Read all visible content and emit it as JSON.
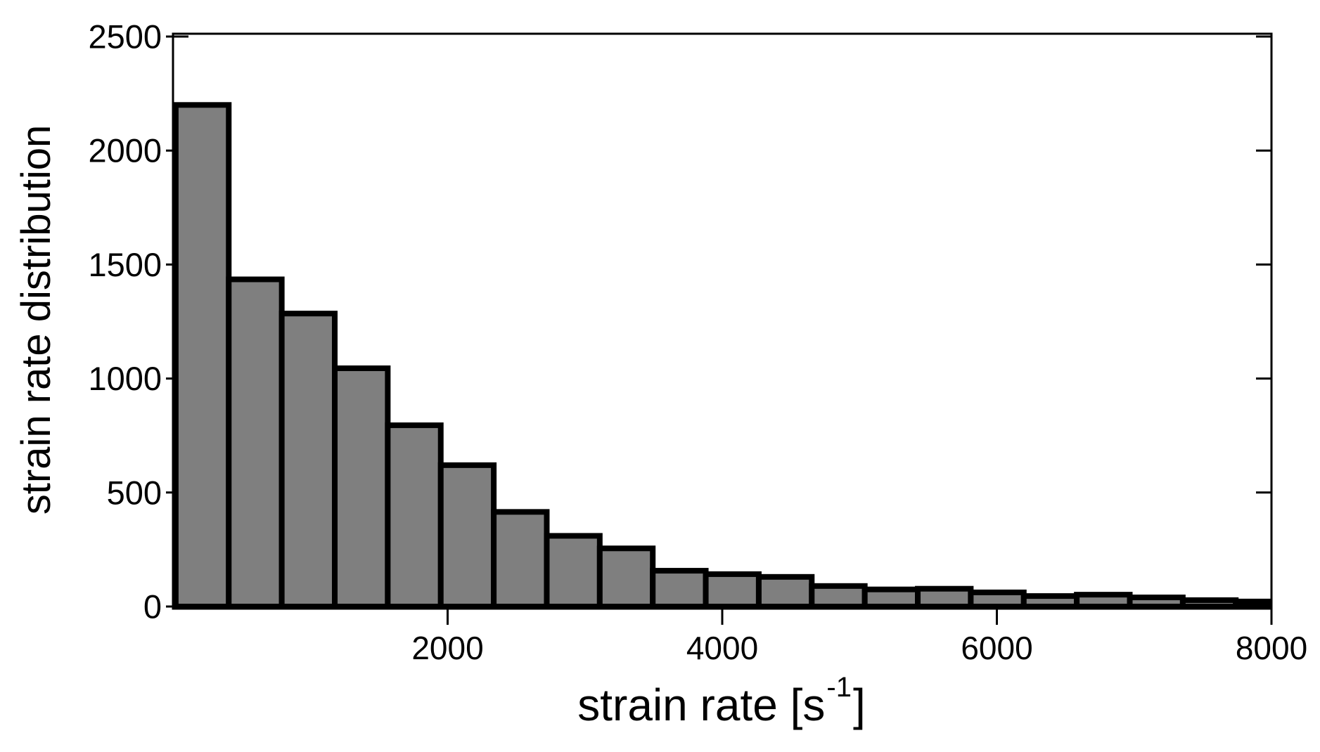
{
  "figure": {
    "background": "#ffffff",
    "ylabel": "strain rate distribution",
    "xlabel_prefix": "strain rate [s",
    "xlabel_superscript": "-1",
    "xlabel_suffix": "]"
  },
  "chart_data": {
    "type": "bar",
    "subtype": "histogram",
    "title": "",
    "xlabel": "strain rate [s^-1]",
    "ylabel": "strain rate distribution",
    "xlim": [
      0,
      8000
    ],
    "ylim": [
      0,
      2500
    ],
    "x_ticks": [
      2000,
      4000,
      6000,
      8000
    ],
    "x_tick_labels": [
      "2000",
      "4000",
      "6000",
      "8000"
    ],
    "y_ticks": [
      0,
      500,
      1000,
      1500,
      2000,
      2500
    ],
    "y_tick_labels": [
      "0",
      "500",
      "1000",
      "1500",
      "2000",
      "2500"
    ],
    "grid": false,
    "legend": null,
    "bin_start": 20,
    "bin_width": 386,
    "counts": [
      2200,
      1435,
      1285,
      1045,
      795,
      620,
      415,
      310,
      255,
      157,
      142,
      130,
      90,
      75,
      78,
      62,
      46,
      52,
      40,
      28,
      22
    ],
    "bar_fill": "#7f7f7f",
    "bar_edge": "#000000",
    "bar_edge_width": 8,
    "axis_color": "#000000"
  }
}
